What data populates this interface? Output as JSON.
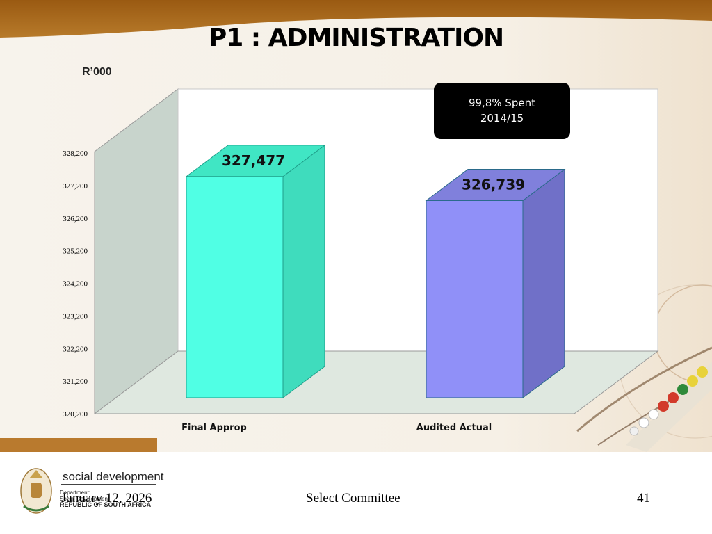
{
  "slide": {
    "title": "P1 : ADMINISTRATION",
    "unit_label": "R’000",
    "callout": {
      "line1": "99,8% Spent",
      "line2": "2014/15"
    }
  },
  "chart_data": {
    "type": "bar",
    "title": "P1 : ADMINISTRATION",
    "ylabel": "R’000",
    "categories": [
      "Final Approp",
      "Audited Actual"
    ],
    "values": [
      327477,
      326739
    ],
    "value_labels": [
      "327,477",
      "326,739"
    ],
    "yticks": [
      320200,
      321200,
      322200,
      323200,
      324200,
      325200,
      326200,
      327200,
      328200
    ],
    "ytick_labels": [
      "320,200",
      "321,200",
      "322,200",
      "323,200",
      "324,200",
      "325,200",
      "326,200",
      "327,200",
      "328,200"
    ],
    "ylim": [
      320200,
      328200
    ],
    "grid": false,
    "legend": "none",
    "colors": {
      "bar1": "#50FFE4",
      "bar2": "#9090F8"
    }
  },
  "footer": {
    "date": "January 12, 2026",
    "center": "Select Committee",
    "page": "41"
  },
  "logo": {
    "name": "social development",
    "sub1": "Department:",
    "sub2": "Social Development",
    "sub3": "REPUBLIC OF SOUTH AFRICA"
  }
}
